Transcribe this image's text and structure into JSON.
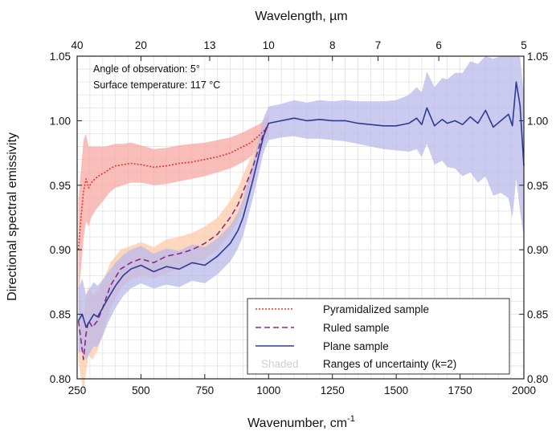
{
  "chart_data": {
    "type": "line",
    "xlabel": "Wavenumber, cm",
    "xlabel_sup": "-1",
    "ylabel": "Directional spectral emissivity",
    "x2label": "Wavelength, µm",
    "xlim": [
      250,
      2000
    ],
    "ylim": [
      0.8,
      1.05
    ],
    "xticks": [
      250,
      500,
      750,
      1000,
      1250,
      1500,
      1750,
      2000
    ],
    "xtick_labels": [
      "250",
      "500",
      "750",
      "1000",
      "1250",
      "1500",
      "1750",
      "2000"
    ],
    "yticks": [
      0.8,
      0.85,
      0.9,
      0.95,
      1.0,
      1.05
    ],
    "ytick_labels": [
      "0.80",
      "0.85",
      "0.90",
      "0.95",
      "1.00",
      "1.05"
    ],
    "x2ticks": [
      {
        "wavenumber": 250,
        "label": "40"
      },
      {
        "wavenumber": 500,
        "label": "20"
      },
      {
        "wavenumber": 769.2,
        "label": "13"
      },
      {
        "wavenumber": 1000,
        "label": "10"
      },
      {
        "wavenumber": 1250,
        "label": "8"
      },
      {
        "wavenumber": 1428.6,
        "label": "7"
      },
      {
        "wavenumber": 1666.7,
        "label": "6"
      },
      {
        "wavenumber": 2000,
        "label": "5"
      }
    ],
    "grid": true,
    "annotations": [
      "Angle of observation: 5°",
      "Surface temperature: 117 °C"
    ],
    "legend": {
      "placement": "bottom-right",
      "entries": [
        {
          "marker": "",
          "label": "Pyramidalized sample"
        },
        {
          "marker": "",
          "label": "Ruled sample"
        },
        {
          "marker": "",
          "label": "Plane sample"
        },
        {
          "marker": "Shaded",
          "label": "Ranges of uncertainty (k=2)"
        }
      ]
    },
    "series": [
      {
        "name": "Pyramidalized sample",
        "style": "dotted",
        "color": "#e8322a",
        "band_color": "#f7a8a3",
        "x": [
          255,
          265,
          275,
          285,
          295,
          305,
          320,
          340,
          360,
          380,
          400,
          430,
          460,
          500,
          550,
          600,
          650,
          700,
          750,
          800,
          850,
          900,
          930,
          960,
          980,
          1000
        ],
        "y": [
          0.9,
          0.925,
          0.945,
          0.955,
          0.948,
          0.952,
          0.955,
          0.958,
          0.96,
          0.963,
          0.965,
          0.966,
          0.967,
          0.966,
          0.964,
          0.965,
          0.967,
          0.968,
          0.97,
          0.972,
          0.975,
          0.98,
          0.983,
          0.988,
          0.992,
          0.995
        ],
        "y_lower": [
          0.862,
          0.885,
          0.908,
          0.922,
          0.918,
          0.925,
          0.93,
          0.935,
          0.94,
          0.945,
          0.948,
          0.95,
          0.952,
          0.952,
          0.95,
          0.951,
          0.953,
          0.955,
          0.957,
          0.96,
          0.963,
          0.968,
          0.972,
          0.978,
          0.983,
          0.988
        ],
        "y_upper": [
          0.938,
          0.962,
          0.985,
          0.99,
          0.98,
          0.98,
          0.98,
          0.98,
          0.98,
          0.981,
          0.982,
          0.982,
          0.983,
          0.981,
          0.978,
          0.979,
          0.981,
          0.982,
          0.983,
          0.985,
          0.987,
          0.991,
          0.994,
          0.997,
          1.0,
          1.003
        ]
      },
      {
        "name": "Ruled sample",
        "style": "dashed",
        "color": "#8a2a8c",
        "band_color": "#fccaa8",
        "x": [
          255,
          265,
          275,
          285,
          295,
          310,
          330,
          350,
          380,
          420,
          460,
          500,
          550,
          600,
          650,
          700,
          750,
          800,
          850,
          880,
          900,
          920,
          940,
          960,
          980,
          1000
        ],
        "y": [
          0.845,
          0.83,
          0.815,
          0.835,
          0.845,
          0.84,
          0.845,
          0.855,
          0.872,
          0.885,
          0.89,
          0.893,
          0.89,
          0.895,
          0.897,
          0.9,
          0.905,
          0.912,
          0.925,
          0.935,
          0.945,
          0.955,
          0.965,
          0.978,
          0.99,
          0.998
        ],
        "y_lower": [
          0.815,
          0.8,
          0.79,
          0.805,
          0.818,
          0.815,
          0.822,
          0.835,
          0.855,
          0.87,
          0.877,
          0.88,
          0.878,
          0.882,
          0.885,
          0.888,
          0.893,
          0.9,
          0.912,
          0.922,
          0.932,
          0.943,
          0.954,
          0.967,
          0.981,
          0.99
        ],
        "y_upper": [
          0.875,
          0.86,
          0.845,
          0.865,
          0.872,
          0.865,
          0.868,
          0.875,
          0.89,
          0.9,
          0.903,
          0.906,
          0.902,
          0.908,
          0.91,
          0.913,
          0.918,
          0.925,
          0.938,
          0.948,
          0.958,
          0.967,
          0.976,
          0.988,
          0.999,
          1.006
        ]
      },
      {
        "name": "Plane sample",
        "style": "solid",
        "color": "#2e3a96",
        "band_color": "#b9b8ea",
        "x": [
          255,
          270,
          285,
          300,
          315,
          330,
          350,
          370,
          400,
          430,
          460,
          500,
          550,
          600,
          650,
          700,
          750,
          800,
          850,
          880,
          900,
          920,
          940,
          960,
          980,
          1000,
          1050,
          1100,
          1150,
          1200,
          1250,
          1300,
          1350,
          1400,
          1450,
          1500,
          1550,
          1580,
          1600,
          1620,
          1650,
          1680,
          1700,
          1730,
          1760,
          1790,
          1820,
          1850,
          1880,
          1910,
          1940,
          1955,
          1970,
          1985,
          2000
        ],
        "y": [
          0.845,
          0.85,
          0.84,
          0.845,
          0.85,
          0.848,
          0.855,
          0.862,
          0.872,
          0.88,
          0.885,
          0.888,
          0.883,
          0.887,
          0.885,
          0.89,
          0.888,
          0.895,
          0.905,
          0.915,
          0.925,
          0.94,
          0.955,
          0.972,
          0.988,
          0.998,
          1.0,
          1.002,
          1.0,
          1.001,
          1.0,
          1.0,
          0.998,
          0.997,
          0.996,
          0.996,
          0.998,
          1.002,
          0.997,
          1.01,
          0.996,
          1.001,
          0.998,
          1.0,
          0.997,
          1.003,
          0.998,
          1.008,
          0.995,
          1.0,
          1.005,
          0.996,
          1.03,
          1.012,
          0.965
        ],
        "y_lower": [
          0.82,
          0.822,
          0.815,
          0.82,
          0.825,
          0.825,
          0.833,
          0.843,
          0.855,
          0.864,
          0.87,
          0.874,
          0.87,
          0.873,
          0.871,
          0.876,
          0.874,
          0.881,
          0.891,
          0.901,
          0.911,
          0.926,
          0.941,
          0.958,
          0.975,
          0.985,
          0.987,
          0.988,
          0.986,
          0.986,
          0.985,
          0.984,
          0.982,
          0.98,
          0.978,
          0.977,
          0.976,
          0.978,
          0.972,
          0.982,
          0.966,
          0.969,
          0.964,
          0.963,
          0.957,
          0.96,
          0.952,
          0.957,
          0.942,
          0.944,
          0.94,
          0.925,
          0.955,
          0.93,
          0.91
        ],
        "y_upper": [
          0.87,
          0.878,
          0.865,
          0.87,
          0.875,
          0.872,
          0.877,
          0.882,
          0.89,
          0.896,
          0.9,
          0.903,
          0.897,
          0.901,
          0.899,
          0.904,
          0.902,
          0.909,
          0.919,
          0.929,
          0.939,
          0.954,
          0.969,
          0.986,
          1.002,
          1.011,
          1.013,
          1.016,
          1.014,
          1.016,
          1.015,
          1.016,
          1.015,
          1.015,
          1.015,
          1.016,
          1.02,
          1.026,
          1.022,
          1.038,
          1.026,
          1.033,
          1.032,
          1.037,
          1.037,
          1.046,
          1.044,
          1.05,
          1.048,
          1.05,
          1.05,
          1.05,
          1.05,
          1.05,
          1.02
        ]
      }
    ]
  }
}
